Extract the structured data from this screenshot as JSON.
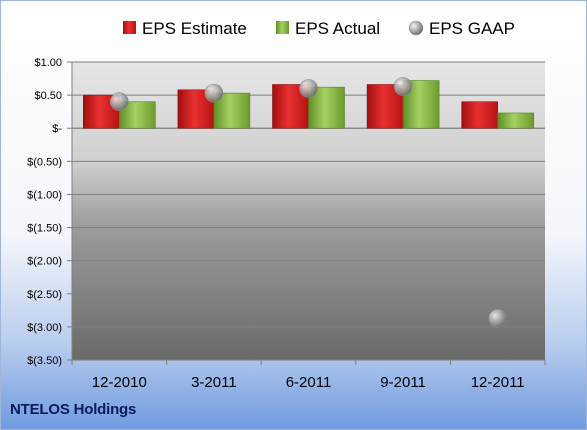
{
  "chart_data": {
    "type": "bar",
    "title": "",
    "xlabel": "",
    "ylabel": "",
    "categories": [
      "12-2010",
      "3-2011",
      "6-2011",
      "9-2011",
      "12-2011"
    ],
    "series": [
      {
        "name": "EPS Estimate",
        "kind": "bar",
        "color": "#d91e1e",
        "values": [
          0.5,
          0.58,
          0.66,
          0.66,
          0.4
        ]
      },
      {
        "name": "EPS Actual",
        "kind": "bar",
        "color": "#8fc04a",
        "values": [
          0.4,
          0.53,
          0.62,
          0.72,
          0.23
        ]
      },
      {
        "name": "EPS GAAP",
        "kind": "marker",
        "color": "#9a9a9a",
        "values": [
          0.4,
          0.53,
          0.6,
          0.63,
          -2.87
        ]
      }
    ],
    "ylim": [
      -3.5,
      1.0
    ],
    "yticks": [
      1.0,
      0.5,
      0.0,
      -0.5,
      -1.0,
      -1.5,
      -2.0,
      -2.5,
      -3.0,
      -3.5
    ],
    "ytick_labels": [
      "$1.00",
      "$0.50",
      "$-",
      "$(0.50)",
      "$(1.00)",
      "$(1.50)",
      "$(2.00)",
      "$(2.50)",
      "$(3.00)",
      "$(3.50)"
    ],
    "grid": true,
    "legend_position": "top"
  },
  "company_label": "NTELOS Holdings"
}
